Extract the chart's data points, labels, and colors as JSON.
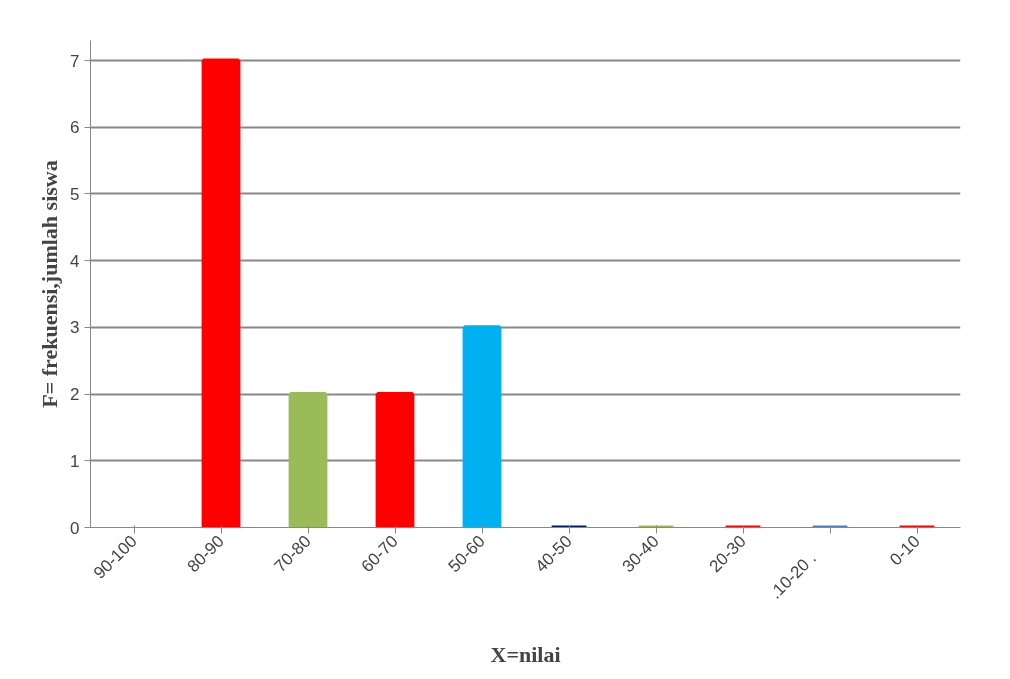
{
  "chart_data": {
    "type": "bar",
    "xlabel": "X=nilai",
    "ylabel": "F= frekuensi,jumlah siswa",
    "categories": [
      "90-100",
      "80-90",
      "70-80",
      "60-70",
      "50-60",
      "40-50",
      "30-40",
      "20-30",
      ".10-20      .",
      "0-10"
    ],
    "values": [
      null,
      7,
      2,
      2,
      3,
      0,
      0,
      0,
      0,
      0
    ],
    "colors": [
      "#ff0000",
      "#ff0000",
      "#9bbb59",
      "#ff0000",
      "#00b0f0",
      "#002060",
      "#9bbb59",
      "#ff0000",
      "#4f81bd",
      "#ff0000"
    ],
    "ylim": [
      0,
      7.3
    ],
    "yticks": [
      0,
      1,
      2,
      3,
      4,
      5,
      6,
      7
    ],
    "grid": "y"
  }
}
